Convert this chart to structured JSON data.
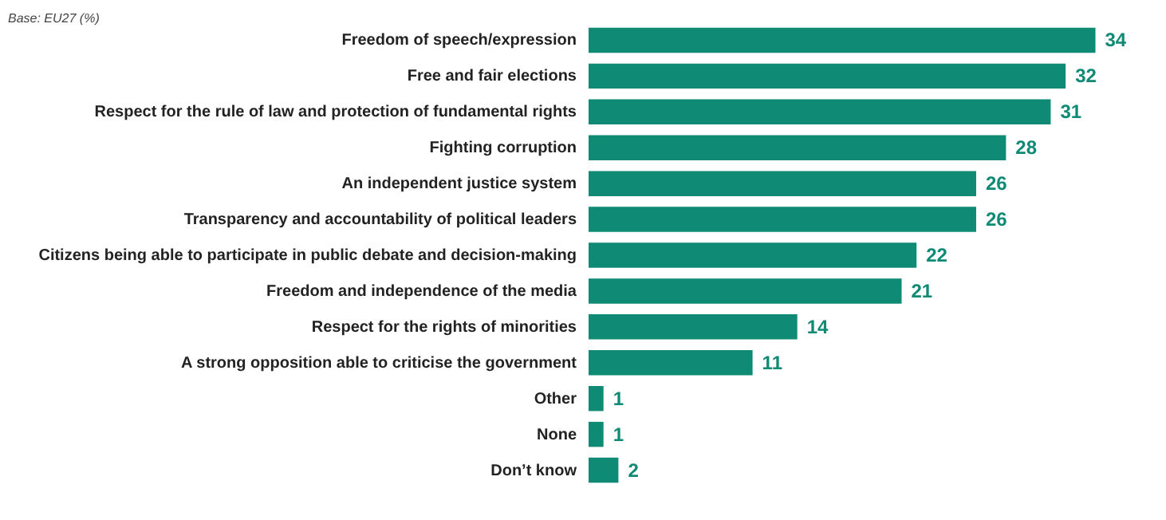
{
  "chart_data": {
    "type": "bar",
    "orientation": "horizontal",
    "data_labels": true,
    "color": "#0f8a74",
    "grid": false,
    "categories": [
      "Freedom of speech/expression",
      "Free and fair elections",
      "Respect for the rule of law and protection of fundamental rights",
      "Fighting corruption",
      "An independent justice system",
      "Transparency and accountability of political leaders",
      "Citizens being able to participate in public debate and decision-making",
      "Freedom and independence of the media",
      "Respect for the rights of minorities",
      "A strong opposition able to criticise the government",
      "Other",
      "None",
      "Don’t know"
    ],
    "values": [
      34,
      32,
      31,
      28,
      26,
      26,
      22,
      21,
      14,
      11,
      1,
      1,
      2
    ],
    "annotations": [
      "Base: EU27 (%)"
    ]
  }
}
